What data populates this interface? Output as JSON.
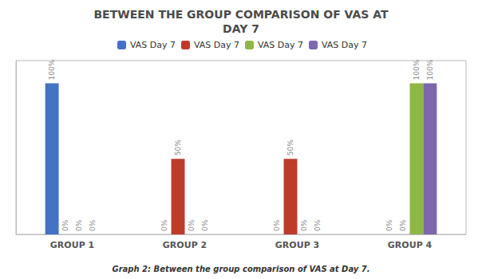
{
  "chart_data": {
    "type": "bar",
    "title": "BETWEEN THE GROUP COMPARISON OF VAS AT\nDAY 7",
    "caption": "Graph 2: Between the group comparison of VAS at Day 7.",
    "categories": [
      "GROUP 1",
      "GROUP 2",
      "GROUP 3",
      "GROUP 4"
    ],
    "series": [
      {
        "name": "VAS Day 7",
        "color": "#4472C4",
        "values": [
          100,
          0,
          0,
          0
        ],
        "value_labels": [
          "100%",
          "0%",
          "0%",
          "0%"
        ]
      },
      {
        "name": "VAS Day 7",
        "color": "#BE3B2A",
        "values": [
          0,
          50,
          50,
          0
        ],
        "value_labels": [
          "0%",
          "50%",
          "50%",
          "0%"
        ]
      },
      {
        "name": "VAS Day 7",
        "color": "#8DB843",
        "values": [
          0,
          0,
          0,
          100
        ],
        "value_labels": [
          "0%",
          "0%",
          "0%",
          "100%"
        ]
      },
      {
        "name": "VAS Day 7",
        "color": "#7B68AE",
        "values": [
          0,
          0,
          0,
          100
        ],
        "value_labels": [
          "0%",
          "0%",
          "0%",
          "100%"
        ]
      }
    ],
    "ylim": [
      0,
      115
    ],
    "grid": false,
    "tick_labels": "x",
    "data_labels": true,
    "legend": "top"
  }
}
